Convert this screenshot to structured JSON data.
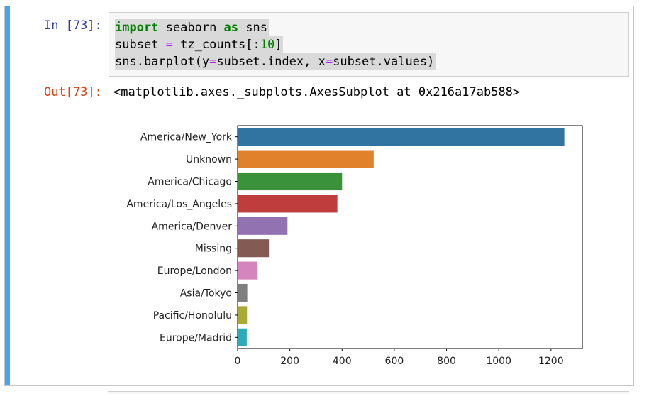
{
  "cell": {
    "in_prompt": "In [73]:",
    "out_prompt": "Out[73]:",
    "code": {
      "line1": {
        "kw1": "import",
        "rest1": " seaborn ",
        "kw2": "as",
        "rest2": " sns"
      },
      "line2": {
        "a": "subset ",
        "eq": "=",
        "b": " tz_counts[:",
        "num": "10",
        "c": "]"
      },
      "line3": {
        "a": "sns.barplot(y",
        "eq1": "=",
        "b": "subset.index, x",
        "eq2": "=",
        "c": "subset.values)"
      }
    },
    "output_text": "<matplotlib.axes._subplots.AxesSubplot at 0x216a17ab588>"
  },
  "chart_data": {
    "type": "bar",
    "orientation": "horizontal",
    "categories": [
      "America/New_York",
      "Unknown",
      "America/Chicago",
      "America/Los_Angeles",
      "America/Denver",
      "Missing",
      "Europe/London",
      "Asia/Tokyo",
      "Pacific/Honolulu",
      "Europe/Madrid"
    ],
    "values": [
      1251,
      521,
      400,
      382,
      191,
      120,
      74,
      37,
      36,
      35
    ],
    "colors": [
      "#3274a1",
      "#e1812c",
      "#3a923a",
      "#c03d3e",
      "#9372b2",
      "#845b53",
      "#d684bd",
      "#7f7f7f",
      "#a9aa35",
      "#2eabb8"
    ],
    "xlim": [
      0,
      1320
    ],
    "xticks": [
      0,
      200,
      400,
      600,
      800,
      1000,
      1200
    ],
    "title": "",
    "xlabel": "",
    "ylabel": ""
  }
}
